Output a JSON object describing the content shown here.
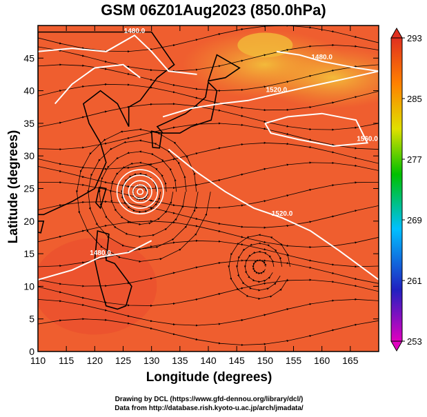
{
  "figure": {
    "title": "GSM 06Z01Aug2023 (850.0hPa)",
    "xlabel": "Longitude (degrees)",
    "ylabel": "Latitude  (degrees)",
    "credit_line1": "Drawing by DCL (https://www.gfd-dennou.org/library/dcl/)",
    "credit_line2": "Data from http://database.rish.kyoto-u.ac.jp/arch/jmadata/"
  },
  "chart_data": {
    "type": "heatmap",
    "field": "850 hPa temperature (shaded), geopotential height (contours), wind streamlines",
    "x_ticks": [
      110,
      115,
      120,
      125,
      130,
      135,
      140,
      145,
      150,
      155,
      160,
      165
    ],
    "y_ticks": [
      0,
      5,
      10,
      15,
      20,
      25,
      30,
      35,
      40,
      45
    ],
    "xlim": [
      110,
      170
    ],
    "ylim": [
      0,
      50
    ],
    "colorbar": {
      "ticks": [
        253,
        261,
        269,
        277,
        285,
        293
      ],
      "min": 253,
      "max": 293,
      "colors": [
        "#e000c0",
        "#2020c0",
        "#00c0ff",
        "#00c000",
        "#e0e000",
        "#ff8000",
        "#e03020"
      ]
    },
    "contours": [
      {
        "label": "1480.0",
        "points": [
          [
            110,
            46
          ],
          [
            116,
            46.5
          ],
          [
            122,
            46
          ],
          [
            127,
            48.5
          ],
          [
            130,
            46
          ],
          [
            133,
            43
          ],
          [
            138,
            42.5
          ]
        ]
      },
      {
        "label": "1480.0",
        "points": [
          [
            110,
            11
          ],
          [
            116,
            12.5
          ],
          [
            121,
            14.5
          ],
          [
            126,
            15.2
          ],
          [
            130,
            17
          ]
        ]
      },
      {
        "label": "1520.0",
        "points": [
          [
            132,
            36
          ],
          [
            137,
            37.3
          ],
          [
            142,
            38
          ],
          [
            147,
            38.5
          ],
          [
            152,
            39.5
          ],
          [
            157,
            40.5
          ],
          [
            165,
            42
          ],
          [
            170,
            43
          ]
        ]
      },
      {
        "label": "1520.0",
        "points": [
          [
            133,
            31
          ],
          [
            138,
            27.5
          ],
          [
            143,
            24.5
          ],
          [
            148,
            22
          ],
          [
            153,
            20.5
          ],
          [
            158,
            18.5
          ],
          [
            163,
            15.5
          ],
          [
            170,
            11
          ]
        ]
      },
      {
        "label": "1560.0",
        "points": [
          [
            150,
            35
          ],
          [
            154,
            36
          ],
          [
            160,
            36.5
          ],
          [
            166,
            35.5
          ],
          [
            168,
            32
          ],
          [
            162,
            31.5
          ],
          [
            156,
            32.5
          ],
          [
            151,
            33.5
          ],
          [
            150,
            35
          ]
        ]
      },
      {
        "label": "1480.0",
        "points": [
          [
            152,
            46
          ],
          [
            156,
            45.5
          ],
          [
            160,
            44.5
          ],
          [
            166,
            43.5
          ],
          [
            170,
            43
          ]
        ]
      },
      {
        "label": "",
        "points": [
          [
            113,
            38
          ],
          [
            116,
            41
          ],
          [
            120,
            43.5
          ],
          [
            125,
            44
          ],
          [
            128,
            42
          ]
        ]
      }
    ],
    "typhoon_center": {
      "lon": 128,
      "lat": 24.5
    },
    "bg_color": "#ef5e2f",
    "hot_color": "#f29a2f",
    "warm_color": "#f3ba3a",
    "cool_color": "#e9482d",
    "land_color": "#000000"
  }
}
